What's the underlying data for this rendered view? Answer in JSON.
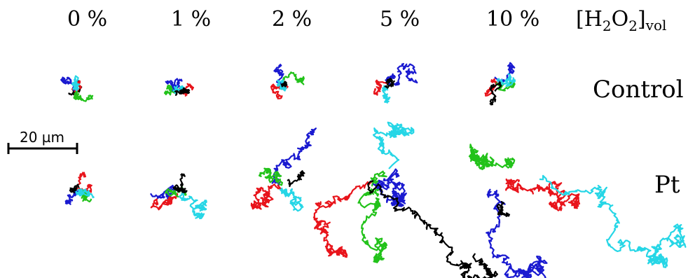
{
  "columns": [
    "0 %",
    "1 %",
    "2 %",
    "5 %",
    "10 %"
  ],
  "concentration_label": {
    "prefix": "[H",
    "sub1": "2",
    "mid": "O",
    "sub2": "2",
    "suffix": "]",
    "unit": "vol"
  },
  "rows": [
    "Control",
    "Pt"
  ],
  "scale_bar": {
    "label": "20 µm"
  },
  "colors": {
    "black": "#000000",
    "red": "#e8141b",
    "green": "#22c21a",
    "blue": "#1a1ad0",
    "cyan": "#26d6e6"
  }
}
